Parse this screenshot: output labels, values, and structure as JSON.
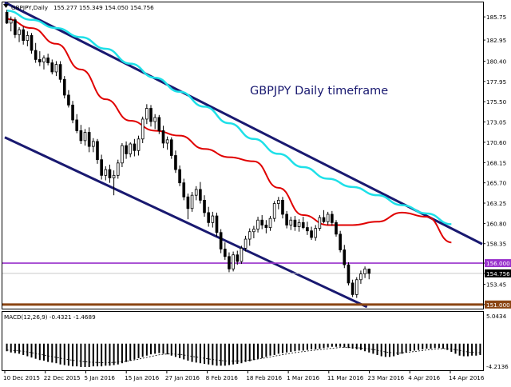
{
  "header": {
    "symbol": "GBPJPY,Daily",
    "ohlc": "155.277 155.349 154.050 154.756"
  },
  "annotation": "GBPJPY Daily timeframe",
  "indicator_header": "MACD(12,26,9) -0.4321 -1.4689",
  "indicator_scale": [
    "5.0434",
    "-4.2136"
  ],
  "colors": {
    "bull": "#ffffff",
    "bear": "#000000",
    "ma_fast": "#e00000",
    "ma_slow": "#1ee0e8",
    "channel": "#191970",
    "support_upper": "#9932cc",
    "support_lower": "#8b4513",
    "current_price_bg": "#000000",
    "grid": "#c0c0c0"
  },
  "chart_data": {
    "type": "candlestick",
    "title": "GBPJPY Daily timeframe",
    "symbol": "GBPJPY",
    "timeframe": "Daily",
    "last": {
      "open": 155.277,
      "high": 155.349,
      "low": 154.05,
      "close": 154.756
    },
    "y_ticks": [
      "185.75",
      "182.95",
      "180.40",
      "177.95",
      "175.50",
      "173.05",
      "170.60",
      "168.15",
      "165.70",
      "163.25",
      "160.80",
      "158.35",
      "156.000",
      "154.756",
      "153.45",
      "151.000"
    ],
    "x_ticks": [
      "10 Dec 2015",
      "22 Dec 2015",
      "5 Jan 2016",
      "15 Jan 2016",
      "27 Jan 2016",
      "8 Feb 2016",
      "18 Feb 2016",
      "1 Mar 2016",
      "11 Mar 2016",
      "23 Mar 2016",
      "4 Apr 2016",
      "14 Apr 2016"
    ],
    "ylim": [
      150.5,
      187.5
    ],
    "horizontal_levels": [
      156.0,
      151.0
    ],
    "current_price": 154.756,
    "candles": [
      [
        186.3,
        186.6,
        184.9,
        185.0
      ],
      [
        185.0,
        185.8,
        184.0,
        185.4
      ],
      [
        185.4,
        185.7,
        183.2,
        183.6
      ],
      [
        183.6,
        184.5,
        182.7,
        184.2
      ],
      [
        184.2,
        184.6,
        182.4,
        182.9
      ],
      [
        182.9,
        184.0,
        182.2,
        183.5
      ],
      [
        183.5,
        183.8,
        181.3,
        181.7
      ],
      [
        181.7,
        182.6,
        180.2,
        180.6
      ],
      [
        180.6,
        181.6,
        179.8,
        180.3
      ],
      [
        180.3,
        181.1,
        179.4,
        180.8
      ],
      [
        180.8,
        181.3,
        179.9,
        180.2
      ],
      [
        180.2,
        180.6,
        178.8,
        179.1
      ],
      [
        179.1,
        180.4,
        178.6,
        180.0
      ],
      [
        180.0,
        180.4,
        177.8,
        178.2
      ],
      [
        178.2,
        178.6,
        175.9,
        176.3
      ],
      [
        176.3,
        176.9,
        174.8,
        175.1
      ],
      [
        175.1,
        175.6,
        172.9,
        173.3
      ],
      [
        173.3,
        174.0,
        171.7,
        172.0
      ],
      [
        172.0,
        172.7,
        170.4,
        170.8
      ],
      [
        170.8,
        172.2,
        170.2,
        171.8
      ],
      [
        171.8,
        172.4,
        169.4,
        170.1
      ],
      [
        170.1,
        171.1,
        169.4,
        170.7
      ],
      [
        170.7,
        171.0,
        168.0,
        168.5
      ],
      [
        168.5,
        169.1,
        166.1,
        166.6
      ],
      [
        166.6,
        167.7,
        166.0,
        167.3
      ],
      [
        167.3,
        167.9,
        165.7,
        166.3
      ],
      [
        166.3,
        167.2,
        164.2,
        166.6
      ],
      [
        166.6,
        168.5,
        166.2,
        168.1
      ],
      [
        168.1,
        170.5,
        167.6,
        170.2
      ],
      [
        170.2,
        170.7,
        168.6,
        169.2
      ],
      [
        169.2,
        170.6,
        168.8,
        170.4
      ],
      [
        170.4,
        171.0,
        168.9,
        169.6
      ],
      [
        169.6,
        171.4,
        169.0,
        171.0
      ],
      [
        171.0,
        173.7,
        170.5,
        173.4
      ],
      [
        173.4,
        175.2,
        172.8,
        174.7
      ],
      [
        174.7,
        175.1,
        172.5,
        173.1
      ],
      [
        173.1,
        174.0,
        172.2,
        173.6
      ],
      [
        173.6,
        173.9,
        171.6,
        172.0
      ],
      [
        172.0,
        172.6,
        169.9,
        170.5
      ],
      [
        170.5,
        171.3,
        169.7,
        170.9
      ],
      [
        170.9,
        171.2,
        168.6,
        169.0
      ],
      [
        169.0,
        169.6,
        166.9,
        167.3
      ],
      [
        167.3,
        167.8,
        165.3,
        165.7
      ],
      [
        165.7,
        166.2,
        163.6,
        164.0
      ],
      [
        164.0,
        164.4,
        161.3,
        162.6
      ],
      [
        162.6,
        164.6,
        162.2,
        164.2
      ],
      [
        164.2,
        165.3,
        163.6,
        164.9
      ],
      [
        164.9,
        165.8,
        163.2,
        163.6
      ],
      [
        163.6,
        164.2,
        161.6,
        162.1
      ],
      [
        162.1,
        162.8,
        160.4,
        160.9
      ],
      [
        160.9,
        162.2,
        160.3,
        161.7
      ],
      [
        161.7,
        162.1,
        159.2,
        159.7
      ],
      [
        159.7,
        160.1,
        157.2,
        157.7
      ],
      [
        157.7,
        158.5,
        156.4,
        156.8
      ],
      [
        156.8,
        157.3,
        154.9,
        155.3
      ],
      [
        155.3,
        157.4,
        155.0,
        157.0
      ],
      [
        157.0,
        157.5,
        155.8,
        156.2
      ],
      [
        156.2,
        158.1,
        155.9,
        157.8
      ],
      [
        157.8,
        159.3,
        157.4,
        158.9
      ],
      [
        158.9,
        160.2,
        158.1,
        159.8
      ],
      [
        159.8,
        160.5,
        159.0,
        160.1
      ],
      [
        160.1,
        161.6,
        159.7,
        161.2
      ],
      [
        161.2,
        161.8,
        160.1,
        160.6
      ],
      [
        160.6,
        161.2,
        159.6,
        160.3
      ],
      [
        160.3,
        161.7,
        159.9,
        161.4
      ],
      [
        161.4,
        163.5,
        161.0,
        163.2
      ],
      [
        163.2,
        164.0,
        162.5,
        163.6
      ],
      [
        163.6,
        164.0,
        161.4,
        161.9
      ],
      [
        161.9,
        162.3,
        160.2,
        160.6
      ],
      [
        160.6,
        161.6,
        160.0,
        161.2
      ],
      [
        161.2,
        161.7,
        159.9,
        160.4
      ],
      [
        160.4,
        161.3,
        159.8,
        160.9
      ],
      [
        160.9,
        161.6,
        160.1,
        160.3
      ],
      [
        160.3,
        161.0,
        159.4,
        159.9
      ],
      [
        159.9,
        160.4,
        158.8,
        159.1
      ],
      [
        159.1,
        160.6,
        158.7,
        160.2
      ],
      [
        160.2,
        161.8,
        159.9,
        161.5
      ],
      [
        161.5,
        162.4,
        160.8,
        161.0
      ],
      [
        161.0,
        162.2,
        160.6,
        161.9
      ],
      [
        161.9,
        162.3,
        160.5,
        160.9
      ],
      [
        160.9,
        161.2,
        159.2,
        159.5
      ],
      [
        159.5,
        159.9,
        157.3,
        157.6
      ],
      [
        157.6,
        158.2,
        155.4,
        155.8
      ],
      [
        155.8,
        156.1,
        153.3,
        153.6
      ],
      [
        153.6,
        154.0,
        151.9,
        152.2
      ],
      [
        152.2,
        154.3,
        151.8,
        154.0
      ],
      [
        154.0,
        155.1,
        153.5,
        154.7
      ],
      [
        154.7,
        155.6,
        154.2,
        155.3
      ],
      [
        155.277,
        155.349,
        154.05,
        154.756
      ]
    ],
    "ma_fast": [
      [
        0,
        185.5
      ],
      [
        6,
        184.4
      ],
      [
        12,
        182.5
      ],
      [
        18,
        179.4
      ],
      [
        24,
        175.8
      ],
      [
        30,
        173.2
      ],
      [
        36,
        172.0
      ],
      [
        42,
        171.4
      ],
      [
        48,
        169.8
      ],
      [
        54,
        168.8
      ],
      [
        60,
        168.3
      ],
      [
        66,
        165.1
      ],
      [
        72,
        161.8
      ],
      [
        78,
        160.6
      ],
      [
        84,
        160.6
      ],
      [
        90,
        161.0
      ],
      [
        96,
        162.1
      ],
      [
        102,
        161.6
      ],
      [
        108,
        158.5
      ]
    ],
    "ma_slow": [
      [
        0,
        186.5
      ],
      [
        6,
        185.4
      ],
      [
        12,
        184.4
      ],
      [
        18,
        183.3
      ],
      [
        24,
        181.9
      ],
      [
        30,
        180.1
      ],
      [
        36,
        178.4
      ],
      [
        42,
        176.7
      ],
      [
        48,
        174.9
      ],
      [
        54,
        172.9
      ],
      [
        60,
        171.0
      ],
      [
        66,
        169.2
      ],
      [
        72,
        167.6
      ],
      [
        78,
        166.2
      ],
      [
        84,
        165.2
      ],
      [
        90,
        164.2
      ],
      [
        96,
        163.0
      ],
      [
        102,
        162.0
      ],
      [
        108,
        160.7
      ]
    ],
    "channel_upper": [
      [
        0,
        187.5
      ],
      [
        116,
        158.3
      ]
    ],
    "channel_lower": [
      [
        0,
        171.2
      ],
      [
        88,
        150.7
      ]
    ],
    "macd": {
      "hist": [
        -1.2,
        -1.4,
        -1.5,
        -1.6,
        -1.8,
        -2.0,
        -2.2,
        -2.4,
        -2.6,
        -2.7,
        -2.9,
        -3.0,
        -3.1,
        -3.3,
        -3.4,
        -3.5,
        -3.6,
        -3.6,
        -3.7,
        -3.7,
        -3.7,
        -3.6,
        -3.6,
        -3.6,
        -3.5,
        -3.5,
        -3.4,
        -3.3,
        -3.1,
        -2.9,
        -2.7,
        -2.5,
        -2.3,
        -2.1,
        -1.9,
        -1.7,
        -1.6,
        -1.5,
        -1.6,
        -1.7,
        -1.9,
        -2.1,
        -2.3,
        -2.5,
        -2.7,
        -2.9,
        -3.0,
        -3.1,
        -3.2,
        -3.3,
        -3.4,
        -3.5,
        -3.5,
        -3.5,
        -3.4,
        -3.3,
        -3.2,
        -3.1,
        -2.9,
        -2.8,
        -2.6,
        -2.4,
        -2.3,
        -2.1,
        -1.9,
        -1.8,
        -1.6,
        -1.5,
        -1.4,
        -1.3,
        -1.2,
        -1.1,
        -1.1,
        -1.0,
        -0.9,
        -0.9,
        -0.8,
        -0.7,
        -0.6,
        -0.5,
        -0.5,
        -0.5,
        -0.6,
        -0.7,
        -0.8,
        -0.9,
        -1.0,
        -1.2,
        -1.4,
        -1.6,
        -1.8,
        -2.0,
        -2.1,
        -2.1,
        -2.0,
        -1.8,
        -1.6,
        -1.4,
        -1.2,
        -1.1,
        -1.0,
        -0.9,
        -0.8,
        -0.8,
        -0.7,
        -0.7,
        -0.8,
        -1.0,
        -1.3,
        -1.6,
        -1.9,
        -2.0,
        -2.0,
        -1.9,
        -1.9,
        -1.8,
        -1.8
      ],
      "signal_line": true,
      "scale_top": 5.0434,
      "scale_bottom": -4.2136
    }
  }
}
